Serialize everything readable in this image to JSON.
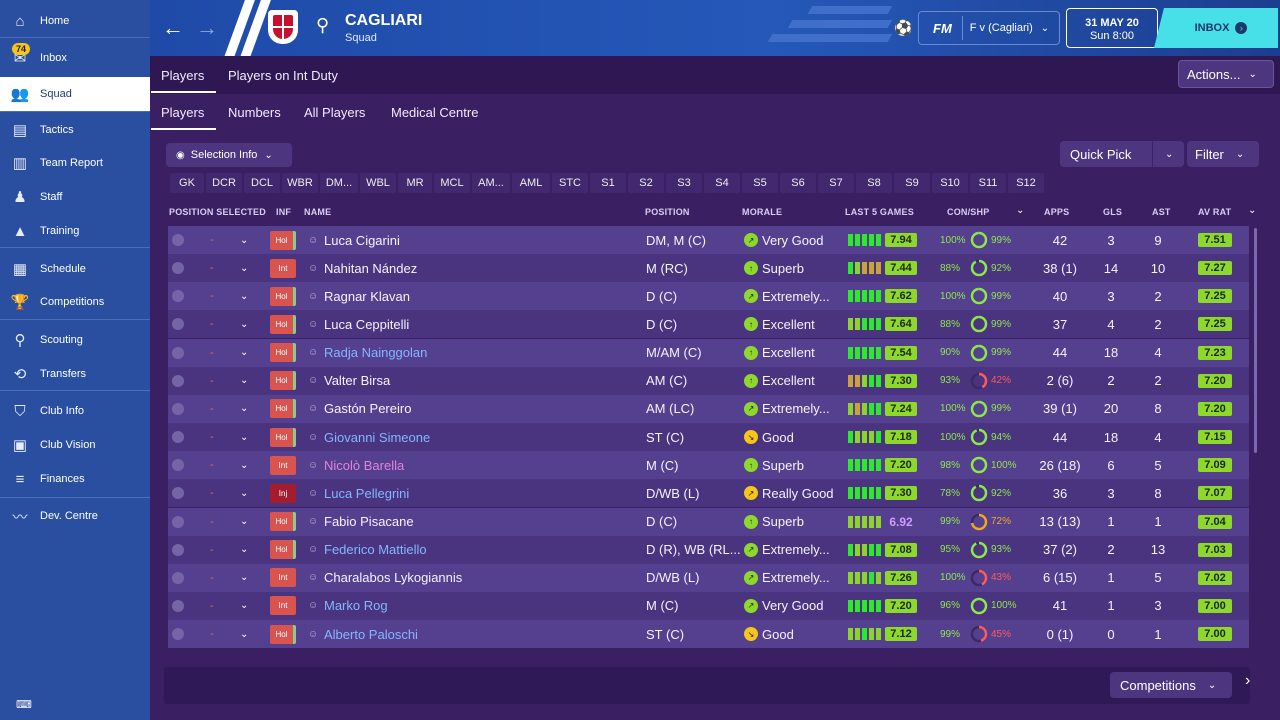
{
  "sidebar": {
    "items": [
      {
        "label": "Home",
        "icon": "home-icon"
      },
      {
        "label": "Inbox",
        "icon": "inbox-icon",
        "badge": "74"
      },
      {
        "label": "Squad",
        "icon": "squad-icon",
        "active": true
      },
      {
        "label": "Tactics",
        "icon": "tactics-icon"
      },
      {
        "label": "Team Report",
        "icon": "report-icon"
      },
      {
        "label": "Staff",
        "icon": "staff-icon"
      },
      {
        "label": "Training",
        "icon": "training-icon"
      },
      {
        "label": "Schedule",
        "icon": "calendar-icon"
      },
      {
        "label": "Competitions",
        "icon": "trophy-icon"
      },
      {
        "label": "Scouting",
        "icon": "search-icon"
      },
      {
        "label": "Transfers",
        "icon": "transfers-icon"
      },
      {
        "label": "Club Info",
        "icon": "shield-icon"
      },
      {
        "label": "Club Vision",
        "icon": "briefcase-icon"
      },
      {
        "label": "Finances",
        "icon": "money-icon"
      },
      {
        "label": "Dev. Centre",
        "icon": "dev-centre-icon"
      }
    ]
  },
  "header": {
    "club": "CAGLIARI",
    "subtitle": "Squad",
    "fm": "FM",
    "match_select": "F v (Cagliari)",
    "date": "31 MAY 20",
    "time": "Sun 8:00",
    "inbox": "INBOX"
  },
  "tabs_top": [
    "Players",
    "Players on Int Duty"
  ],
  "actions_label": "Actions...",
  "tabs_sub": [
    "Players",
    "Numbers",
    "All Players",
    "Medical Centre"
  ],
  "selection_info": "Selection Info",
  "quick_pick": "Quick Pick",
  "filter": "Filter",
  "positions": [
    "GK",
    "DCR",
    "DCL",
    "WBR",
    "DM...",
    "WBL",
    "MR",
    "MCL",
    "AM...",
    "AML",
    "STC",
    "S1",
    "S2",
    "S3",
    "S4",
    "S5",
    "S6",
    "S7",
    "S8",
    "S9",
    "S10",
    "S11",
    "S12"
  ],
  "columns": {
    "position_selected": "POSITION SELECTED",
    "inf": "INF",
    "name": "NAME",
    "position": "POSITION",
    "morale": "MORALE",
    "last5": "LAST 5 GAMES",
    "conshp": "CON/SHP",
    "apps": "APPS",
    "gls": "GLS",
    "ast": "AST",
    "avrat": "AV RAT"
  },
  "colors": {
    "morale_good": "#8ed72d",
    "morale_ok": "#f5c518",
    "rating": "#8ed72d"
  },
  "players": [
    {
      "inf": "Hol",
      "name": "Luca Cigarini",
      "style": "",
      "pos": "DM, M (C)",
      "morale": "Very Good",
      "mor_color": "#8ed72d",
      "mor_arrow": "↗",
      "bars": [
        "g",
        "g",
        "g",
        "g",
        "g"
      ],
      "l5": "7.94",
      "con": "100%",
      "con_frac": 1.0,
      "shp": "99%",
      "shp_frac": 0.99,
      "shp_color": "#8ee84b",
      "apps": "42",
      "gls": "3",
      "ast": "9",
      "avr": "7.51"
    },
    {
      "inf": "Int",
      "name": "Nahitan Nández",
      "style": "",
      "pos": "M (RC)",
      "morale": "Superb",
      "mor_color": "#8ed72d",
      "mor_arrow": "↑",
      "bars": [
        "g",
        "k",
        "o",
        "o",
        "o"
      ],
      "l5": "7.44",
      "con": "88%",
      "con_frac": 0.88,
      "shp": "92%",
      "shp_frac": 0.92,
      "shp_color": "#8ee84b",
      "apps": "38 (1)",
      "gls": "14",
      "ast": "10",
      "avr": "7.27"
    },
    {
      "inf": "Hol",
      "name": "Ragnar Klavan",
      "style": "",
      "pos": "D (C)",
      "morale": "Extremely...",
      "mor_color": "#8ed72d",
      "mor_arrow": "↗",
      "bars": [
        "g",
        "g",
        "g",
        "g",
        "g"
      ],
      "l5": "7.62",
      "con": "100%",
      "con_frac": 1.0,
      "shp": "99%",
      "shp_frac": 0.99,
      "shp_color": "#8ee84b",
      "apps": "40",
      "gls": "3",
      "ast": "2",
      "avr": "7.25"
    },
    {
      "inf": "Hol",
      "name": "Luca Ceppitelli",
      "style": "",
      "pos": "D (C)",
      "morale": "Excellent",
      "mor_color": "#8ed72d",
      "mor_arrow": "↑",
      "bars": [
        "k",
        "k",
        "g",
        "g",
        "g"
      ],
      "l5": "7.64",
      "con": "88%",
      "con_frac": 0.88,
      "shp": "99%",
      "shp_frac": 0.99,
      "shp_color": "#8ee84b",
      "apps": "37",
      "gls": "4",
      "ast": "2",
      "avr": "7.25"
    },
    {
      "inf": "Hol",
      "name": "Radja Nainggolan",
      "style": "blue",
      "pos": "M/AM (C)",
      "morale": "Excellent",
      "mor_color": "#8ed72d",
      "mor_arrow": "↑",
      "bars": [
        "g",
        "g",
        "g",
        "g",
        "g"
      ],
      "l5": "7.54",
      "con": "90%",
      "con_frac": 0.9,
      "shp": "99%",
      "shp_frac": 0.99,
      "shp_color": "#8ee84b",
      "apps": "44",
      "gls": "18",
      "ast": "4",
      "avr": "7.23"
    },
    {
      "inf": "Hol",
      "name": "Valter Birsa",
      "style": "",
      "pos": "AM (C)",
      "morale": "Excellent",
      "mor_color": "#8ed72d",
      "mor_arrow": "↑",
      "bars": [
        "o",
        "o",
        "k",
        "g",
        "g"
      ],
      "l5": "7.30",
      "con": "93%",
      "con_frac": 0.93,
      "shp": "42%",
      "shp_frac": 0.42,
      "shp_color": "#ff5b5b",
      "apps": "2 (6)",
      "gls": "2",
      "ast": "2",
      "avr": "7.20"
    },
    {
      "inf": "Hol",
      "name": "Gastón Pereiro",
      "style": "",
      "pos": "AM (LC)",
      "morale": "Extremely...",
      "mor_color": "#8ed72d",
      "mor_arrow": "↗",
      "bars": [
        "k",
        "o",
        "k",
        "g",
        "g"
      ],
      "l5": "7.24",
      "con": "100%",
      "con_frac": 1.0,
      "shp": "99%",
      "shp_frac": 0.99,
      "shp_color": "#8ee84b",
      "apps": "39 (1)",
      "gls": "20",
      "ast": "8",
      "avr": "7.20"
    },
    {
      "inf": "Hol",
      "name": "Giovanni Simeone",
      "style": "blue",
      "pos": "ST (C)",
      "morale": "Good",
      "mor_color": "#f5c518",
      "mor_arrow": "↘",
      "bars": [
        "g",
        "k",
        "k",
        "k",
        "g"
      ],
      "l5": "7.18",
      "con": "100%",
      "con_frac": 1.0,
      "shp": "94%",
      "shp_frac": 0.94,
      "shp_color": "#8ee84b",
      "apps": "44",
      "gls": "18",
      "ast": "4",
      "avr": "7.15"
    },
    {
      "inf": "Int",
      "name": "Nicolò Barella",
      "style": "pink",
      "pos": "M (C)",
      "morale": "Superb",
      "mor_color": "#8ed72d",
      "mor_arrow": "↑",
      "bars": [
        "g",
        "g",
        "g",
        "g",
        "g"
      ],
      "l5": "7.20",
      "con": "98%",
      "con_frac": 0.98,
      "shp": "100%",
      "shp_frac": 1.0,
      "shp_color": "#8ee84b",
      "apps": "26 (18)",
      "gls": "6",
      "ast": "5",
      "avr": "7.09"
    },
    {
      "inf": "Inj",
      "name": "Luca Pellegrini",
      "style": "blue",
      "pos": "D/WB (L)",
      "morale": "Really Good",
      "mor_color": "#f5c518",
      "mor_arrow": "↗",
      "bars": [
        "g",
        "g",
        "g",
        "g",
        "g"
      ],
      "l5": "7.30",
      "con": "78%",
      "con_frac": 0.78,
      "shp": "92%",
      "shp_frac": 0.92,
      "shp_color": "#8ee84b",
      "apps": "36",
      "gls": "3",
      "ast": "8",
      "avr": "7.07"
    },
    {
      "inf": "Hol",
      "name": "Fabio Pisacane",
      "style": "",
      "pos": "D (C)",
      "morale": "Superb",
      "mor_color": "#8ed72d",
      "mor_arrow": "↑",
      "bars": [
        "k",
        "k",
        "k",
        "k",
        "k"
      ],
      "l5": "6.92",
      "l5_purple": true,
      "con": "99%",
      "con_frac": 0.99,
      "shp": "72%",
      "shp_frac": 0.72,
      "shp_color": "#f5a623",
      "apps": "13 (13)",
      "gls": "1",
      "ast": "1",
      "avr": "7.04"
    },
    {
      "inf": "Hol",
      "name": "Federico Mattiello",
      "style": "blue",
      "pos": "D (R), WB (RL...",
      "morale": "Extremely...",
      "mor_color": "#8ed72d",
      "mor_arrow": "↗",
      "bars": [
        "g",
        "k",
        "k",
        "g",
        "g"
      ],
      "l5": "7.08",
      "con": "95%",
      "con_frac": 0.95,
      "shp": "93%",
      "shp_frac": 0.93,
      "shp_color": "#8ee84b",
      "apps": "37 (2)",
      "gls": "2",
      "ast": "13",
      "avr": "7.03"
    },
    {
      "inf": "Int",
      "name": "Charalabos Lykogiannis",
      "style": "",
      "pos": "D/WB (L)",
      "morale": "Extremely...",
      "mor_color": "#8ed72d",
      "mor_arrow": "↗",
      "bars": [
        "k",
        "k",
        "k",
        "g",
        "k"
      ],
      "l5": "7.26",
      "con": "100%",
      "con_frac": 1.0,
      "shp": "43%",
      "shp_frac": 0.43,
      "shp_color": "#ff5b5b",
      "apps": "6 (15)",
      "gls": "1",
      "ast": "5",
      "avr": "7.02"
    },
    {
      "inf": "Int",
      "name": "Marko Rog",
      "style": "blue",
      "pos": "M (C)",
      "morale": "Very Good",
      "mor_color": "#8ed72d",
      "mor_arrow": "↗",
      "bars": [
        "g",
        "g",
        "g",
        "g",
        "g"
      ],
      "l5": "7.20",
      "con": "96%",
      "con_frac": 0.96,
      "shp": "100%",
      "shp_frac": 1.0,
      "shp_color": "#8ee84b",
      "apps": "41",
      "gls": "1",
      "ast": "3",
      "avr": "7.00"
    },
    {
      "inf": "Hol",
      "name": "Alberto Paloschi",
      "style": "blue",
      "pos": "ST (C)",
      "morale": "Good",
      "mor_color": "#f5c518",
      "mor_arrow": "↘",
      "bars": [
        "k",
        "k",
        "g",
        "k",
        "k"
      ],
      "l5": "7.12",
      "con": "99%",
      "con_frac": 0.99,
      "shp": "45%",
      "shp_frac": 0.45,
      "shp_color": "#ff5b5b",
      "apps": "0 (1)",
      "gls": "0",
      "ast": "1",
      "avr": "7.00"
    }
  ],
  "bottom": {
    "competitions": "Competitions"
  }
}
